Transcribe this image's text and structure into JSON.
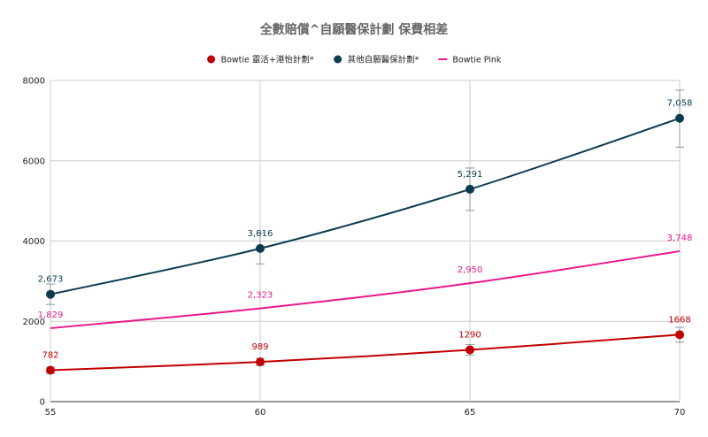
{
  "chart_data": {
    "type": "line",
    "title": "全數賠償^自願醫保計劃 保費相差",
    "xlabel": "",
    "ylabel": "",
    "x": [
      55,
      60,
      65,
      70
    ],
    "xticks": [
      "55",
      "60",
      "65",
      "70"
    ],
    "xlim": [
      55,
      70
    ],
    "yticks": [
      "0",
      "2000",
      "4000",
      "6000",
      "8000"
    ],
    "ylim": [
      0,
      8000
    ],
    "grid": true,
    "legend_position": "top",
    "series": [
      {
        "name": "Bowtie 靈活+港怡計劃*",
        "color": "#c00000",
        "values": [
          782,
          989,
          1290,
          1668
        ],
        "labels": [
          "782",
          "989",
          "1290",
          "1668"
        ],
        "markers": true,
        "error": [
          [
            700,
            860
          ],
          [
            900,
            1080
          ],
          [
            1160,
            1420
          ],
          [
            1480,
            1850
          ]
        ]
      },
      {
        "name": "其他自願醫保計劃*",
        "color": "#0b3b4f",
        "values": [
          2673,
          3816,
          5291,
          7058
        ],
        "labels": [
          "2,673",
          "3,816",
          "5,291",
          "7,058"
        ],
        "markers": true,
        "error": [
          [
            2420,
            2930
          ],
          [
            3430,
            4200
          ],
          [
            4760,
            5820
          ],
          [
            6340,
            7760
          ]
        ]
      },
      {
        "name": "Bowtie Pink",
        "color": "#e8178a",
        "values": [
          1829,
          2323,
          2950,
          3748
        ],
        "labels": [
          "1,829",
          "2,323",
          "2,950",
          "3,748"
        ],
        "markers": false
      }
    ]
  }
}
